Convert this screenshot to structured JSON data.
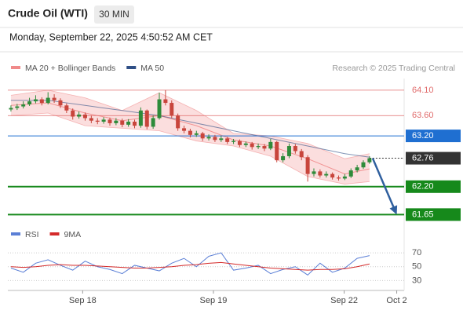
{
  "header": {
    "title": "Crude Oil (WTI)",
    "timeframe": "30 MIN",
    "datetime": "Monday, September 22, 2025 4:50:52 AM CET"
  },
  "chart_data": [
    {
      "type": "candlestick",
      "legend": [
        {
          "name": "MA 20 + Bollinger Bands",
          "color": "#f08a8a"
        },
        {
          "name": "MA 50",
          "color": "#2f4f86"
        }
      ],
      "credit": "Research © 2025 Trading Central",
      "up_color": "#2e8b3a",
      "down_color": "#c8453c",
      "x": [
        0,
        1,
        2,
        3,
        4,
        5,
        6,
        7,
        8,
        9,
        10,
        11,
        12,
        13,
        14,
        15,
        16,
        17,
        18,
        19,
        20,
        21,
        22,
        23,
        24,
        25,
        26,
        27,
        28,
        29,
        30,
        31,
        32,
        33,
        34,
        35,
        36,
        37,
        38,
        39,
        40,
        41,
        42,
        43,
        44,
        45,
        46,
        47,
        48,
        49,
        50,
        51,
        52,
        53,
        54,
        55,
        56,
        57,
        58
      ],
      "open": [
        63.72,
        63.75,
        63.78,
        63.82,
        63.88,
        63.92,
        63.85,
        63.95,
        63.9,
        63.8,
        63.7,
        63.58,
        63.62,
        63.55,
        63.5,
        63.48,
        63.52,
        63.45,
        63.5,
        63.42,
        63.48,
        63.4,
        63.7,
        63.38,
        63.55,
        63.92,
        63.85,
        63.6,
        63.35,
        63.3,
        63.22,
        63.25,
        63.15,
        63.18,
        63.12,
        63.15,
        63.08,
        63.1,
        63.02,
        63.05,
        62.98,
        63.0,
        62.95,
        63.08,
        62.72,
        62.8,
        63.0,
        62.9,
        62.78,
        62.45,
        62.5,
        62.42,
        62.45,
        62.38,
        62.36,
        62.4,
        62.52,
        62.58,
        62.68
      ],
      "high": [
        63.8,
        63.83,
        63.88,
        63.95,
        64.0,
        63.96,
        64.06,
        64.02,
        63.94,
        63.84,
        63.74,
        63.68,
        63.66,
        63.6,
        63.55,
        63.57,
        63.56,
        63.55,
        63.54,
        63.53,
        63.52,
        63.76,
        63.72,
        63.6,
        64.05,
        64.1,
        63.9,
        63.64,
        63.4,
        63.34,
        63.3,
        63.28,
        63.23,
        63.22,
        63.2,
        63.18,
        63.14,
        63.13,
        63.09,
        63.08,
        63.05,
        63.04,
        63.14,
        63.1,
        62.86,
        63.05,
        63.04,
        62.94,
        62.82,
        62.56,
        62.54,
        62.5,
        62.48,
        62.42,
        62.45,
        62.56,
        62.63,
        62.72,
        62.8
      ],
      "low": [
        63.68,
        63.71,
        63.74,
        63.79,
        63.84,
        63.8,
        63.82,
        63.85,
        63.75,
        63.65,
        63.52,
        63.54,
        63.5,
        63.45,
        63.43,
        63.44,
        63.4,
        63.41,
        63.37,
        63.38,
        63.35,
        63.36,
        63.33,
        63.34,
        63.52,
        63.8,
        63.55,
        63.3,
        63.25,
        63.17,
        63.18,
        63.1,
        63.11,
        63.08,
        63.08,
        63.04,
        63.04,
        62.98,
        62.98,
        62.93,
        62.94,
        62.9,
        62.92,
        62.68,
        62.68,
        62.76,
        62.85,
        62.72,
        62.3,
        62.4,
        62.38,
        62.38,
        62.34,
        62.32,
        62.33,
        62.37,
        62.48,
        62.55,
        62.65
      ],
      "close": [
        63.75,
        63.78,
        63.82,
        63.88,
        63.92,
        63.85,
        63.95,
        63.9,
        63.8,
        63.7,
        63.58,
        63.62,
        63.55,
        63.5,
        63.48,
        63.52,
        63.45,
        63.5,
        63.42,
        63.48,
        63.4,
        63.7,
        63.38,
        63.55,
        63.92,
        63.85,
        63.6,
        63.35,
        63.3,
        63.22,
        63.25,
        63.15,
        63.18,
        63.12,
        63.15,
        63.08,
        63.1,
        63.02,
        63.05,
        62.98,
        63.0,
        62.95,
        63.08,
        62.72,
        62.8,
        63.0,
        62.9,
        62.78,
        62.45,
        62.5,
        62.42,
        62.45,
        62.38,
        62.36,
        62.4,
        62.52,
        62.58,
        62.68,
        62.76
      ],
      "overlays": {
        "x": [
          0,
          6,
          12,
          18,
          24,
          30,
          36,
          42,
          48,
          54,
          58
        ],
        "ma20": [
          63.8,
          63.85,
          63.65,
          63.5,
          63.6,
          63.4,
          63.12,
          63.0,
          62.75,
          62.45,
          62.55
        ],
        "bb_upper": [
          64.0,
          64.1,
          63.95,
          63.7,
          64.05,
          63.7,
          63.25,
          63.2,
          63.05,
          62.75,
          62.85
        ],
        "bb_lower": [
          63.6,
          63.65,
          63.4,
          63.35,
          63.3,
          63.1,
          63.0,
          62.8,
          62.4,
          62.25,
          62.3
        ],
        "ma50": [
          63.9,
          63.9,
          63.8,
          63.7,
          63.6,
          63.45,
          63.3,
          63.15,
          63.0,
          62.85,
          62.78
        ]
      },
      "levels": [
        {
          "value": 64.1,
          "label": "64.10",
          "color": "#e06a6a",
          "style": "plain"
        },
        {
          "value": 63.6,
          "label": "63.60",
          "color": "#e06a6a",
          "style": "plain"
        },
        {
          "value": 63.2,
          "label": "63.20",
          "color": "#1f6fd1",
          "style": "box"
        },
        {
          "value": 62.76,
          "label": "62.76",
          "color": "#333333",
          "style": "current"
        },
        {
          "value": 62.2,
          "label": "62.20",
          "color": "#16891b",
          "style": "box"
        },
        {
          "value": 61.65,
          "label": "61.65",
          "color": "#16891b",
          "style": "box"
        }
      ],
      "forecast_color": "#2f5f9e",
      "ylim": [
        61.47,
        64.33
      ],
      "xlim": [
        -0.5,
        63.6
      ],
      "xticks": [
        {
          "value": 11.6,
          "label": "Sep 18"
        },
        {
          "value": 32.75,
          "label": "Sep 19"
        },
        {
          "value": 53.9,
          "label": "Sep 22"
        },
        {
          "value": 62.4,
          "label": "Oct 2"
        }
      ]
    },
    {
      "type": "line",
      "series": [
        {
          "name": "RSI",
          "color": "#5b7fd6",
          "values": [
            48,
            42,
            55,
            60,
            52,
            45,
            58,
            50,
            46,
            40,
            52,
            48,
            44,
            55,
            62,
            50,
            65,
            70,
            45,
            48,
            52,
            40,
            46,
            50,
            38,
            55,
            42,
            48,
            62,
            66
          ]
        },
        {
          "name": "9MA",
          "color": "#d42a2a",
          "values": [
            50,
            49,
            50,
            52,
            53,
            52,
            52,
            51,
            50,
            49,
            48,
            48,
            49,
            50,
            52,
            53,
            55,
            56,
            54,
            52,
            50,
            48,
            47,
            46,
            45,
            46,
            46,
            47,
            50,
            54
          ]
        }
      ],
      "x": [
        0,
        2,
        4,
        6,
        8,
        10,
        12,
        14,
        16,
        18,
        20,
        22,
        24,
        26,
        28,
        30,
        32,
        34,
        36,
        38,
        40,
        42,
        44,
        46,
        48,
        50,
        52,
        54,
        56,
        58
      ],
      "ylim": [
        18,
        78
      ],
      "yticks": [
        70,
        50,
        30
      ]
    }
  ]
}
